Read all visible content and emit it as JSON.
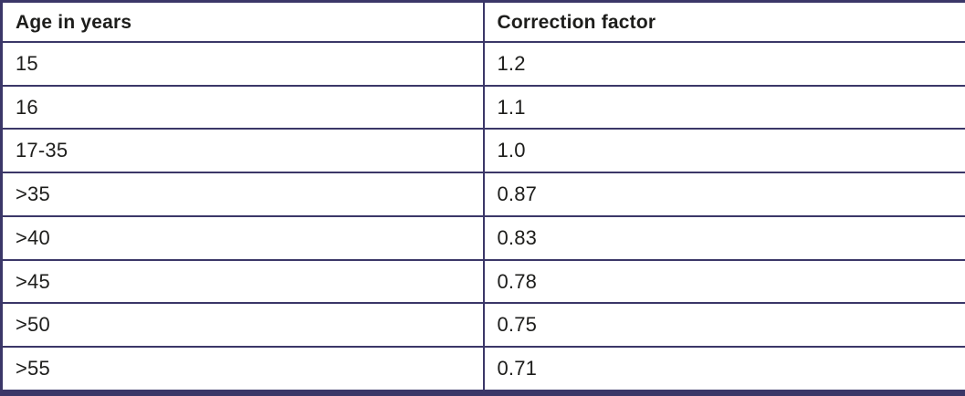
{
  "colors": {
    "border": "#3b3768",
    "text": "#1d1d1b",
    "cell_background": "#ffffff"
  },
  "table": {
    "columns": {
      "age": "Age in years",
      "factor": "Correction factor"
    },
    "rows": [
      {
        "age": "15",
        "factor": "1.2"
      },
      {
        "age": "16",
        "factor": "1.1"
      },
      {
        "age": "17-35",
        "factor": "1.0"
      },
      {
        "age": ">35",
        "factor": "0.87"
      },
      {
        "age": ">40",
        "factor": "0.83"
      },
      {
        "age": ">45",
        "factor": "0.78"
      },
      {
        "age": ">50",
        "factor": "0.75"
      },
      {
        "age": ">55",
        "factor": "0.71"
      }
    ]
  }
}
